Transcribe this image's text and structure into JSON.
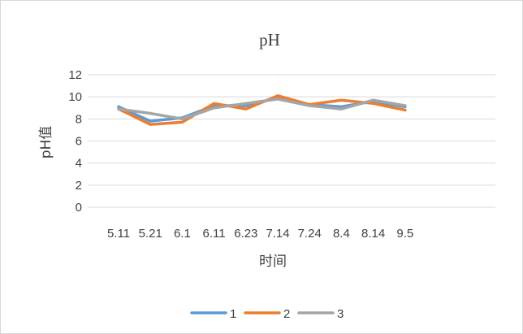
{
  "chart_data": {
    "type": "line",
    "title": "pH",
    "xlabel": "时间",
    "ylabel": "pH值",
    "categories": [
      "5.11",
      "5.21",
      "6.1",
      "6.11",
      "6.23",
      "7.14",
      "7.24",
      "8.4",
      "8.14",
      "9.5"
    ],
    "ylim": [
      0,
      12
    ],
    "yticks": [
      0,
      2,
      4,
      6,
      8,
      10,
      12
    ],
    "grid": true,
    "legend_position": "bottom",
    "series": [
      {
        "name": "1",
        "color": "#5b9bd5",
        "values": [
          9.1,
          7.8,
          8.1,
          9.2,
          9.2,
          9.9,
          9.3,
          9.1,
          9.6,
          9.1
        ]
      },
      {
        "name": "2",
        "color": "#ed7d31",
        "values": [
          8.9,
          7.5,
          7.7,
          9.4,
          8.9,
          10.1,
          9.3,
          9.7,
          9.4,
          8.8
        ]
      },
      {
        "name": "3",
        "color": "#a5a5a5",
        "values": [
          8.9,
          8.5,
          8.0,
          9.0,
          9.4,
          9.8,
          9.2,
          8.9,
          9.7,
          9.2
        ]
      }
    ]
  }
}
